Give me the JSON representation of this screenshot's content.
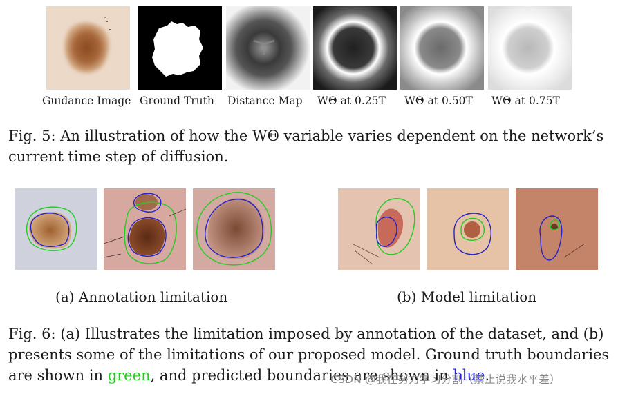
{
  "fig5": {
    "captions": [
      "Guidance Image",
      "Ground Truth",
      "Distance Map",
      "WΘ at 0.25T",
      "WΘ at 0.50T",
      "WΘ at 0.75T"
    ],
    "caption_label": "Fig. 5:",
    "caption_text": "An illustration of how the WΘ variable varies dependent on the network’s current time step of diffusion."
  },
  "fig6": {
    "subcaption_a": "(a) Annotation limitation",
    "subcaption_b": "(b) Model limitation",
    "caption_label": "Fig. 6:",
    "caption_pre": "(a) Illustrates the limitation imposed by annotation of the dataset, and (b) presents some of the limitations of our proposed model. Ground truth boundaries are shown in ",
    "caption_green": "green",
    "caption_mid": ", and predicted boundaries are shown in ",
    "caption_blue": "blue",
    "caption_end": "."
  },
  "watermark": "CSDN @我在努力学习分割（禁止说我水平差）",
  "colors": {
    "ground_truth": "#22cc22",
    "prediction": "#2222cc"
  }
}
